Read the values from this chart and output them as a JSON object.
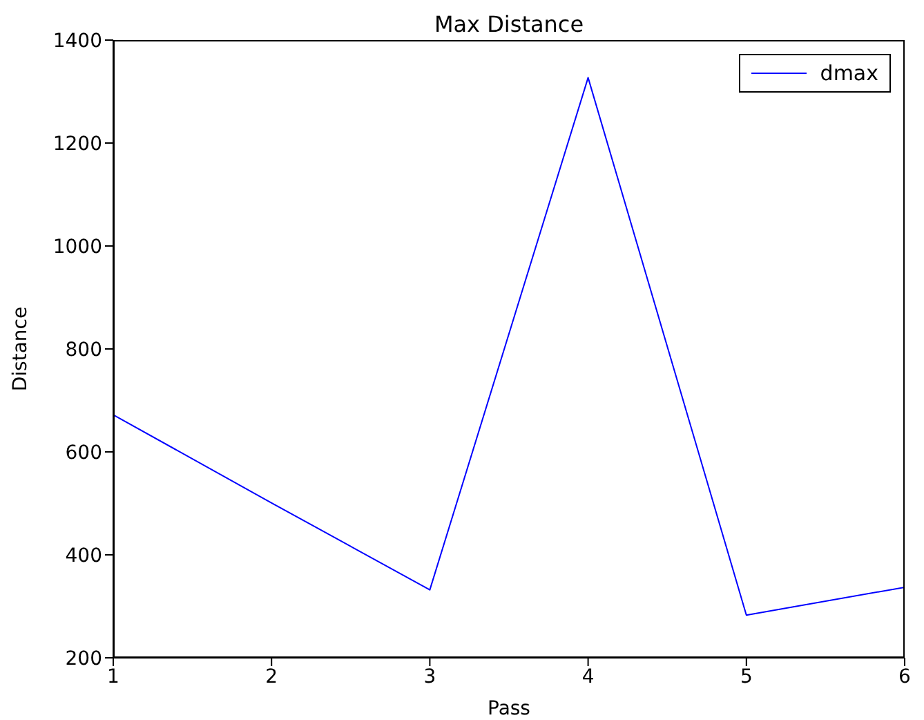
{
  "chart_data": {
    "type": "line",
    "title": "Max Distance",
    "xlabel": "Pass",
    "ylabel": "Distance",
    "x": [
      1,
      2,
      3,
      4,
      5,
      6
    ],
    "series": [
      {
        "name": "dmax",
        "color": "#0000ff",
        "values": [
          672,
          501,
          332,
          1327,
          283,
          337
        ]
      }
    ],
    "xlim": [
      1,
      6
    ],
    "xticks": [
      1,
      2,
      3,
      4,
      5,
      6
    ],
    "ylim": [
      200,
      1400
    ],
    "yticks": [
      200,
      400,
      600,
      800,
      1000,
      1200,
      1400
    ],
    "grid": false,
    "legend": "top right",
    "marker": "none",
    "line_style": "solid"
  }
}
